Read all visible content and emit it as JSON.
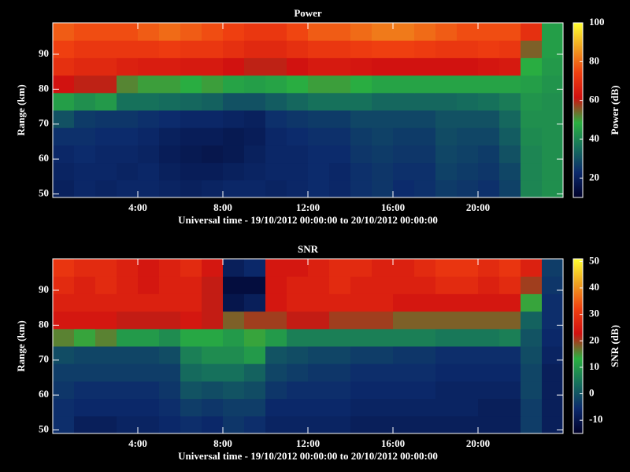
{
  "chart_data": [
    {
      "type": "heatmap",
      "title": "Power",
      "xlabel": "Universal time - 19/10/2012 00:00:00 to 20/10/2012 00:00:00",
      "ylabel": "Range (km)",
      "colorbar_label": "Power (dB)",
      "x": [
        0.5,
        1.5,
        2.5,
        3.5,
        4.5,
        5.5,
        6.5,
        7.5,
        8.5,
        9.5,
        10.5,
        11.5,
        12.5,
        13.5,
        14.5,
        15.5,
        16.5,
        17.5,
        18.5,
        19.5,
        20.5,
        21.5,
        22.5,
        23.5
      ],
      "y": [
        51.5,
        56.5,
        61.5,
        66.5,
        71.5,
        76.5,
        81.5,
        86.5,
        91.5,
        96.5
      ],
      "z": [
        [
          20,
          22,
          21,
          22,
          22,
          21,
          20,
          21,
          22,
          22,
          21,
          22,
          23,
          22,
          24,
          25,
          23,
          24,
          26,
          25,
          24,
          27,
          40,
          42
        ],
        [
          21,
          22,
          22,
          21,
          22,
          20,
          19,
          19,
          20,
          21,
          22,
          22,
          23,
          22,
          24,
          25,
          24,
          24,
          27,
          26,
          25,
          28,
          40,
          42
        ],
        [
          22,
          23,
          22,
          22,
          21,
          19,
          18,
          17,
          18,
          20,
          22,
          22,
          23,
          23,
          25,
          26,
          25,
          25,
          28,
          27,
          26,
          30,
          40,
          42
        ],
        [
          24,
          24,
          23,
          23,
          22,
          20,
          19,
          19,
          18,
          19,
          22,
          23,
          24,
          24,
          26,
          27,
          26,
          26,
          29,
          28,
          28,
          32,
          41,
          42
        ],
        [
          30,
          26,
          25,
          25,
          24,
          23,
          22,
          22,
          21,
          20,
          24,
          25,
          26,
          26,
          28,
          28,
          28,
          28,
          30,
          30,
          30,
          34,
          42,
          42
        ],
        [
          45,
          42,
          44,
          36,
          36,
          35,
          34,
          33,
          30,
          30,
          32,
          34,
          36,
          36,
          36,
          34,
          34,
          34,
          34,
          35,
          36,
          38,
          43,
          42
        ],
        [
          62,
          60,
          60,
          52,
          50,
          50,
          48,
          50,
          46,
          45,
          46,
          48,
          50,
          50,
          48,
          46,
          46,
          46,
          46,
          46,
          46,
          46,
          45,
          43
        ],
        [
          70,
          68,
          68,
          66,
          65,
          65,
          64,
          64,
          62,
          60,
          60,
          62,
          64,
          64,
          63,
          62,
          62,
          62,
          62,
          62,
          63,
          64,
          48,
          44
        ],
        [
          74,
          72,
          72,
          72,
          72,
          73,
          72,
          72,
          70,
          68,
          68,
          70,
          72,
          72,
          73,
          74,
          74,
          73,
          72,
          72,
          73,
          72,
          55,
          45
        ],
        [
          78,
          76,
          76,
          76,
          78,
          80,
          78,
          76,
          74,
          72,
          72,
          75,
          78,
          78,
          80,
          82,
          82,
          80,
          78,
          76,
          76,
          76,
          70,
          45
        ]
      ],
      "xlim": [
        0,
        24
      ],
      "ylim": [
        49,
        99
      ],
      "xticks": [
        {
          "value": 4,
          "label": "4:00"
        },
        {
          "value": 8,
          "label": "8:00"
        },
        {
          "value": 12,
          "label": "12:00"
        },
        {
          "value": 16,
          "label": "16:00"
        },
        {
          "value": 20,
          "label": "20:00"
        }
      ],
      "yticks": [
        50,
        60,
        70,
        80,
        90
      ],
      "clim": [
        10,
        100
      ],
      "cticks": [
        20,
        40,
        60,
        80,
        100
      ],
      "colormap": [
        "#000028",
        "#0c2a6c",
        "#16705c",
        "#2ab040",
        "#d01010",
        "#f04010",
        "#f0a020",
        "#ffff30"
      ]
    },
    {
      "type": "heatmap",
      "title": "SNR",
      "xlabel": "Universal time - 19/10/2012 00:00:00 to 20/10/2012 00:00:00",
      "ylabel": "Range (km)",
      "colorbar_label": "SNR (dB)",
      "x": [
        0.5,
        1.5,
        2.5,
        3.5,
        4.5,
        5.5,
        6.5,
        7.5,
        8.5,
        9.5,
        10.5,
        11.5,
        12.5,
        13.5,
        14.5,
        15.5,
        16.5,
        17.5,
        18.5,
        19.5,
        20.5,
        21.5,
        22.5,
        23.5
      ],
      "y": [
        51.5,
        56.5,
        61.5,
        66.5,
        71.5,
        76.5,
        81.5,
        86.5,
        91.5,
        96.5
      ],
      "z": [
        [
          -5,
          -8,
          -8,
          -7,
          -7,
          -6,
          -5,
          -6,
          -4,
          -5,
          -7,
          -7,
          -7,
          -7,
          -8,
          -8,
          -8,
          -8,
          -8,
          -8,
          -8,
          -8,
          -3,
          -8
        ],
        [
          -5,
          -6,
          -6,
          -6,
          -6,
          -5,
          -3,
          -4,
          -3,
          -3,
          -6,
          -6,
          -6,
          -6,
          -7,
          -7,
          -7,
          -7,
          -7,
          -7,
          -8,
          -8,
          -3,
          -8
        ],
        [
          -4,
          -5,
          -5,
          -5,
          -5,
          -4,
          0,
          -1,
          0,
          -1,
          -4,
          -5,
          -5,
          -5,
          -6,
          -6,
          -6,
          -6,
          -7,
          -7,
          -7,
          -7,
          -2,
          -8
        ],
        [
          -3,
          -3,
          -3,
          -3,
          -3,
          -3,
          3,
          4,
          4,
          2,
          -2,
          -3,
          -4,
          -4,
          -5,
          -5,
          -5,
          -5,
          -6,
          -6,
          -6,
          -6,
          -2,
          -8
        ],
        [
          -1,
          -2,
          -2,
          -2,
          -2,
          -1,
          6,
          8,
          8,
          10,
          0,
          -1,
          -2,
          -2,
          -3,
          -3,
          -4,
          -4,
          -5,
          -5,
          -5,
          -5,
          -1,
          -7
        ],
        [
          16,
          14,
          16,
          10,
          10,
          8,
          12,
          12,
          10,
          14,
          10,
          6,
          6,
          6,
          6,
          6,
          6,
          6,
          5,
          5,
          5,
          6,
          0,
          -6
        ],
        [
          24,
          24,
          24,
          22,
          22,
          22,
          24,
          22,
          18,
          20,
          20,
          22,
          22,
          20,
          20,
          20,
          18,
          18,
          18,
          18,
          18,
          18,
          2,
          -5
        ],
        [
          26,
          26,
          26,
          26,
          26,
          26,
          26,
          22,
          -10,
          -8,
          24,
          26,
          26,
          26,
          26,
          26,
          24,
          24,
          24,
          24,
          24,
          24,
          14,
          -5
        ],
        [
          28,
          26,
          28,
          26,
          24,
          26,
          26,
          22,
          -12,
          -12,
          24,
          26,
          26,
          28,
          26,
          26,
          26,
          26,
          28,
          28,
          26,
          28,
          20,
          -4
        ],
        [
          30,
          28,
          28,
          26,
          24,
          26,
          28,
          24,
          -8,
          -6,
          24,
          24,
          26,
          28,
          28,
          26,
          26,
          28,
          30,
          30,
          28,
          30,
          26,
          -3
        ]
      ],
      "xlim": [
        0,
        24
      ],
      "ylim": [
        49,
        99
      ],
      "xticks": [
        {
          "value": 4,
          "label": "4:00"
        },
        {
          "value": 8,
          "label": "8:00"
        },
        {
          "value": 12,
          "label": "12:00"
        },
        {
          "value": 16,
          "label": "16:00"
        },
        {
          "value": 20,
          "label": "20:00"
        }
      ],
      "yticks": [
        50,
        60,
        70,
        80,
        90
      ],
      "clim": [
        -15,
        51
      ],
      "cticks": [
        -10,
        0,
        10,
        20,
        30,
        40,
        50
      ],
      "colormap": [
        "#000028",
        "#0c2a6c",
        "#16705c",
        "#2ab040",
        "#d01010",
        "#f04010",
        "#f0a020",
        "#ffff30"
      ]
    }
  ]
}
